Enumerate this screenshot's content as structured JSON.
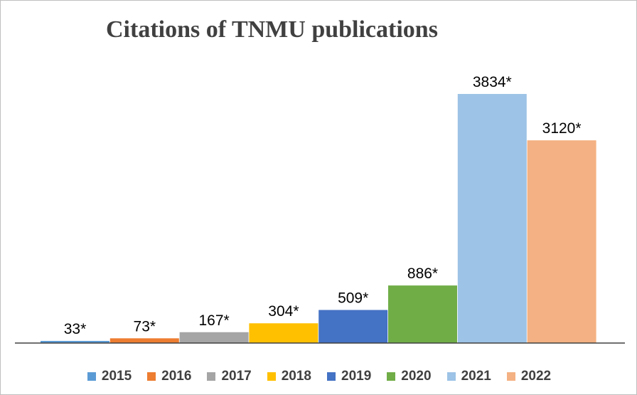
{
  "chart_data": {
    "type": "bar",
    "title": "Citations of TNMU publications",
    "categories": [
      "2015",
      "2016",
      "2017",
      "2018",
      "2019",
      "2020",
      "2021",
      "2022"
    ],
    "values": [
      33,
      73,
      167,
      304,
      509,
      886,
      3834,
      3120
    ],
    "data_labels": [
      "33*",
      "73*",
      "167*",
      "304*",
      "509*",
      "886*",
      "3834*",
      "3120*"
    ],
    "colors": [
      "#5b9bd5",
      "#ed7d31",
      "#a5a5a5",
      "#ffc000",
      "#4472c4",
      "#70ad47",
      "#9dc3e6",
      "#f4b183"
    ],
    "ylim": [
      0,
      4500
    ],
    "grid": false,
    "legend_position": "bottom",
    "xlabel": "",
    "ylabel": ""
  }
}
